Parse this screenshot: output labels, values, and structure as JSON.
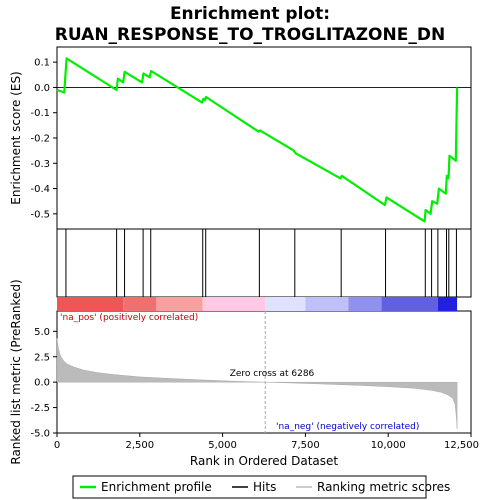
{
  "chart_data": {
    "type": "line",
    "title_line1": "Enrichment plot:",
    "title_line2": "RUAN_RESPONSE_TO_TROGLITAZONE_DN",
    "colors": {
      "es_line": "#00ee00",
      "hits": "#000000",
      "metric_fill": "#bbbbbb",
      "zero_cross_line": "#aaaaaa",
      "bar_red": "#ee0000",
      "bar_pink": "#ffc0dd",
      "bar_lavender": "#d8d8ff",
      "bar_blue": "#2020dd"
    },
    "x_axis": {
      "label": "Rank in Ordered Dataset",
      "range": [
        0,
        12500
      ],
      "ticks": [
        0,
        2500,
        5000,
        7500,
        10000,
        12500
      ],
      "tick_labels": [
        "0",
        "2,500",
        "5,000",
        "7,500",
        "10,000",
        "12,500"
      ]
    },
    "es_panel": {
      "ylabel": "Enrichment score (ES)",
      "ylim": [
        -0.56,
        0.16
      ],
      "ticks": [
        0.1,
        0.0,
        -0.1,
        -0.2,
        -0.3,
        -0.4,
        -0.5
      ],
      "tick_labels": [
        "0.1",
        "0.0",
        "-0.1",
        "-0.2",
        "-0.3",
        "-0.4",
        "-0.5"
      ],
      "zero_line": true
    },
    "metric_panel": {
      "ylabel": "Ranked list metric (PreRanked)",
      "ylim": [
        -5,
        7
      ],
      "ticks": [
        5.0,
        2.5,
        0.0,
        -2.5,
        -5.0
      ],
      "tick_labels": [
        "5.0",
        "2.5",
        "0.0",
        "-2.5",
        "-5.0"
      ],
      "zero_cross_label": "Zero cross at 6286",
      "zero_cross": 6286,
      "pos_label": "'na_pos' (positively correlated)",
      "neg_label": "'na_neg' (negatively correlated)",
      "metric_curve": {
        "x": [
          0,
          40,
          100,
          200,
          300,
          500,
          800,
          1200,
          1700,
          2500,
          3500,
          4500,
          5500,
          6286,
          7000,
          8000,
          9000,
          10000,
          10800,
          11300,
          11600,
          11800,
          11950,
          12020,
          12060,
          12080
        ],
        "y": [
          4.3,
          3.4,
          2.6,
          2.1,
          1.8,
          1.5,
          1.2,
          0.95,
          0.75,
          0.52,
          0.35,
          0.2,
          0.08,
          0.0,
          -0.07,
          -0.18,
          -0.3,
          -0.45,
          -0.6,
          -0.8,
          -1.0,
          -1.25,
          -1.6,
          -2.2,
          -3.5,
          -4.6
        ]
      }
    },
    "enrichment_profile": {
      "x": [
        0,
        220,
        260,
        290,
        1800,
        1840,
        2000,
        2040,
        2570,
        2610,
        2800,
        2840,
        4380,
        4420,
        4470,
        4500,
        6090,
        6130,
        7150,
        7200,
        8560,
        8600,
        9900,
        9950,
        11100,
        11130,
        11280,
        11330,
        11480,
        11530,
        11740,
        11770,
        11820,
        11850,
        12040,
        12080
      ],
      "y": [
        -0.01,
        -0.02,
        0.06,
        0.115,
        -0.01,
        0.035,
        0.02,
        0.062,
        0.02,
        0.055,
        0.04,
        0.065,
        -0.06,
        -0.045,
        -0.05,
        -0.038,
        -0.175,
        -0.17,
        -0.25,
        -0.26,
        -0.36,
        -0.35,
        -0.465,
        -0.435,
        -0.53,
        -0.485,
        -0.5,
        -0.45,
        -0.46,
        -0.4,
        -0.42,
        -0.35,
        -0.36,
        -0.27,
        -0.29,
        0.0
      ],
      "last_x": 12080
    },
    "hits": [
      270,
      1800,
      2040,
      2600,
      2830,
      4400,
      4490,
      6110,
      7180,
      8580,
      9920,
      11120,
      11310,
      11500,
      11760,
      11830,
      12060
    ],
    "bar_segments": [
      {
        "from": 0,
        "to": 2000,
        "color": "#ee5555"
      },
      {
        "from": 2000,
        "to": 3000,
        "color": "#f07070"
      },
      {
        "from": 3000,
        "to": 4400,
        "color": "#f8a0a0"
      },
      {
        "from": 4400,
        "to": 6286,
        "color": "#ffc8e4"
      },
      {
        "from": 6286,
        "to": 7500,
        "color": "#e0e0ff"
      },
      {
        "from": 7500,
        "to": 8800,
        "color": "#c0c0f8"
      },
      {
        "from": 8800,
        "to": 9800,
        "color": "#9090ee"
      },
      {
        "from": 9800,
        "to": 11500,
        "color": "#6060e0"
      },
      {
        "from": 11500,
        "to": 12080,
        "color": "#2020dd"
      }
    ],
    "legend": [
      {
        "label": "Enrichment profile",
        "style": "es"
      },
      {
        "label": "Hits",
        "style": "hit"
      },
      {
        "label": "Ranking metric scores",
        "style": "metric"
      }
    ]
  }
}
